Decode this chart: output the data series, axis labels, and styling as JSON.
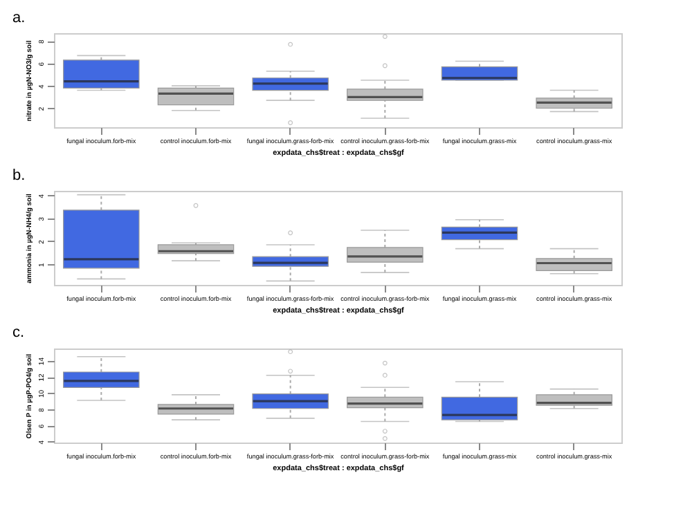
{
  "chart_data": [
    {
      "type": "box",
      "title": "a.",
      "xlabel": "expdata_chs$treat : expdata_chs$gf",
      "ylabel": "nitrate in µgN-NO3/g soil",
      "categories": [
        "fungal inoculum.forb-mix",
        "control inoculum.forb-mix",
        "fungal inoculum.grass-forb-mix",
        "control inoculum.grass-forb-mix",
        "fungal inoculum.grass-mix",
        "control inoculum.grass-mix"
      ],
      "colors": [
        "#4169e1",
        "#bebebe",
        "#4169e1",
        "#bebebe",
        "#4169e1",
        "#bebebe"
      ],
      "ylim": [
        0.3,
        8.7
      ],
      "yticks": [
        2,
        4,
        6,
        8
      ],
      "grid": false,
      "boxes": [
        {
          "low": 3.6,
          "q1": 3.8,
          "median": 4.4,
          "q3": 6.3,
          "high": 6.7
        },
        {
          "low": 1.8,
          "q1": 2.3,
          "median": 3.3,
          "q3": 3.8,
          "high": 4.0
        },
        {
          "low": 2.7,
          "q1": 3.6,
          "median": 4.2,
          "q3": 4.7,
          "high": 5.3,
          "outliers": [
            7.7,
            0.7
          ]
        },
        {
          "low": 1.1,
          "q1": 2.7,
          "median": 3.0,
          "q3": 3.7,
          "high": 4.5,
          "outliers": [
            8.4,
            5.8
          ]
        },
        {
          "low": 4.5,
          "q1": 4.5,
          "median": 4.7,
          "q3": 5.7,
          "high": 6.2
        },
        {
          "low": 1.7,
          "q1": 2.0,
          "median": 2.5,
          "q3": 2.9,
          "high": 3.6
        }
      ]
    },
    {
      "type": "box",
      "title": "b.",
      "xlabel": "expdata_chs$treat : expdata_chs$gf",
      "ylabel": "ammonia in µgN-NH4/g soil",
      "categories": [
        "fungal inoculum.forb-mix",
        "control inoculum.forb-mix",
        "fungal inoculum.grass-forb-mix",
        "control inoculum.grass-forb-mix",
        "fungal inoculum.grass-mix",
        "control inoculum.grass-mix"
      ],
      "colors": [
        "#4169e1",
        "#bebebe",
        "#4169e1",
        "#bebebe",
        "#4169e1",
        "#bebebe"
      ],
      "ylim": [
        0.1,
        4.2
      ],
      "yticks": [
        1,
        2,
        3,
        4
      ],
      "grid": false,
      "boxes": [
        {
          "low": 0.36,
          "q1": 0.83,
          "median": 1.22,
          "q3": 3.36,
          "high": 4.03
        },
        {
          "low": 1.15,
          "q1": 1.47,
          "median": 1.57,
          "q3": 1.85,
          "high": 1.93,
          "outliers": [
            3.56
          ]
        },
        {
          "low": 0.27,
          "q1": 0.91,
          "median": 1.06,
          "q3": 1.33,
          "high": 1.85,
          "outliers": [
            2.37
          ]
        },
        {
          "low": 0.64,
          "q1": 1.09,
          "median": 1.34,
          "q3": 1.73,
          "high": 2.48
        },
        {
          "low": 1.68,
          "q1": 2.07,
          "median": 2.38,
          "q3": 2.62,
          "high": 2.94
        },
        {
          "low": 0.59,
          "q1": 0.72,
          "median": 1.05,
          "q3": 1.25,
          "high": 1.68
        }
      ]
    },
    {
      "type": "box",
      "title": "c.",
      "xlabel": "expdata_chs$treat : expdata_chs$gf",
      "ylabel": "Olsen P in µgP-PO4/g soil",
      "categories": [
        "fungal inoculum.forb-mix",
        "control inoculum.forb-mix",
        "fungal inoculum.grass-forb-mix",
        "control inoculum.grass-forb-mix",
        "fungal inoculum.grass-mix",
        "control inoculum.grass-mix"
      ],
      "colors": [
        "#4169e1",
        "#bebebe",
        "#4169e1",
        "#bebebe",
        "#4169e1",
        "#bebebe"
      ],
      "ylim": [
        3.9,
        15.5
      ],
      "yticks": [
        4,
        6,
        8,
        10,
        12,
        14
      ],
      "grid": false,
      "boxes": [
        {
          "low": 9.1,
          "q1": 10.7,
          "median": 11.5,
          "q3": 12.6,
          "high": 14.5
        },
        {
          "low": 6.7,
          "q1": 7.4,
          "median": 8.1,
          "q3": 8.6,
          "high": 9.8
        },
        {
          "low": 6.9,
          "q1": 8.1,
          "median": 9.0,
          "q3": 9.9,
          "high": 12.2,
          "outliers": [
            15.1,
            12.7
          ]
        },
        {
          "low": 6.5,
          "q1": 8.2,
          "median": 8.7,
          "q3": 9.5,
          "high": 10.7,
          "outliers": [
            13.7,
            12.2,
            5.3,
            4.4
          ]
        },
        {
          "low": 6.5,
          "q1": 6.7,
          "median": 7.3,
          "q3": 9.5,
          "high": 11.4
        },
        {
          "low": 8.1,
          "q1": 8.5,
          "median": 8.8,
          "q3": 9.8,
          "high": 10.5
        }
      ]
    }
  ]
}
